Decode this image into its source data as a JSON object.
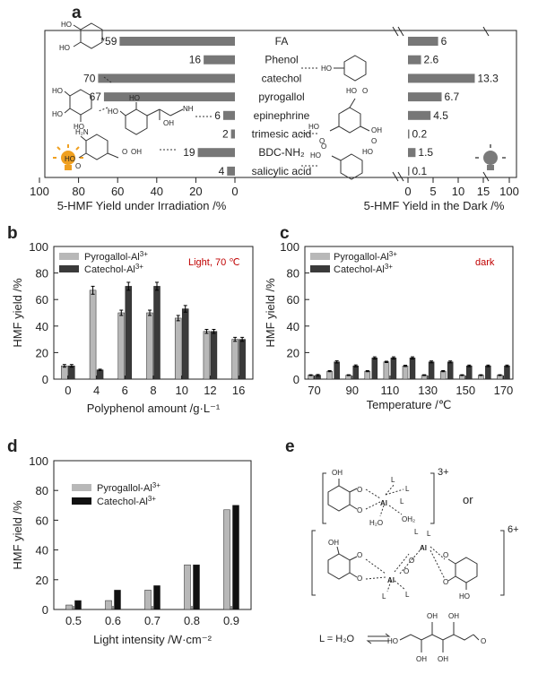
{
  "panels": {
    "a": {
      "label": "a",
      "compounds": [
        "FA",
        "Phenol",
        "catechol",
        "pyrogallol",
        "epinephrine",
        "trimesic acid",
        "BDC-NH₂",
        "salicylic acid"
      ],
      "light_labels": [
        "*59",
        "16",
        "70",
        "67",
        "6",
        "2",
        "19",
        "4"
      ],
      "dark_labels": [
        "6",
        "2.6",
        "13.3",
        "6.7",
        "4.5",
        "0.2",
        "1.5",
        "0.1"
      ],
      "left_ticks": [
        "100",
        "80",
        "60",
        "40",
        "20",
        "0"
      ],
      "right_ticks": [
        "0",
        "5",
        "10",
        "15",
        "100"
      ],
      "left_xlabel": "5-HMF Yield under Irradiation /%",
      "right_xlabel": "5-HMF Yield in the Dark /%",
      "structures": {
        "catechol": [
          "HO",
          "HO"
        ],
        "phenol": [
          "HO"
        ],
        "pyrogallol": [
          "HO",
          "HO",
          "HO"
        ],
        "epinephrine": [
          "HO",
          "HO",
          "NH",
          "OH"
        ],
        "trimesic": [
          "HO",
          "O",
          "HO",
          "O",
          "O",
          "OH"
        ],
        "bdc": [
          "H₂N",
          "HO",
          "O",
          "O",
          "OH"
        ],
        "salicylic": [
          "HO",
          "O",
          "HO"
        ]
      }
    },
    "b": {
      "label": "b",
      "annotation": "Light, 70 ℃",
      "legend_1": "Pyrogallol-Al",
      "legend_2": "Catechol-Al",
      "sup": "3+",
      "ylabel": "HMF yield /%",
      "xlabel": "Polyphenol amount /g·L⁻¹",
      "yticks": [
        "0",
        "20",
        "40",
        "60",
        "80",
        "100"
      ]
    },
    "c": {
      "label": "c",
      "annotation": "dark",
      "legend_1": "Pyrogallol-Al",
      "legend_2": "Catechol-Al",
      "sup": "3+",
      "ylabel": "HMF yield /%",
      "xlabel": "Temperature /℃",
      "yticks": [
        "0",
        "20",
        "40",
        "60",
        "80",
        "100"
      ],
      "xticks": [
        "70",
        "90",
        "110",
        "130",
        "150",
        "170"
      ]
    },
    "d": {
      "label": "d",
      "legend_1": "Pyrogallol-Al",
      "legend_2": "Catechol-Al",
      "sup": "3+",
      "ylabel": "HMF yield /%",
      "xlabel": "Light intensity /W·cm⁻²",
      "yticks": [
        "0",
        "20",
        "40",
        "60",
        "80",
        "100"
      ]
    },
    "e": {
      "label": "e",
      "or": "or",
      "charge_1": "3+",
      "charge_2": "6+",
      "complex_1": [
        "OH",
        "O",
        "O",
        "L",
        "L",
        "Al",
        "L",
        "H₂O",
        "OH₂"
      ],
      "complex_2": [
        "OH",
        "O",
        "O",
        "L",
        "L",
        "Al",
        "O",
        "O",
        "Al",
        "O",
        "O",
        "L",
        "L",
        "HO"
      ],
      "ligand_eq": "L = H₂O",
      "sugar": [
        "OH",
        "OH",
        "HO",
        "OH",
        "OH",
        "O"
      ]
    }
  },
  "chart_data": [
    {
      "type": "bar",
      "title": "",
      "categories": [
        "FA",
        "Phenol",
        "catechol",
        "pyrogallol",
        "epinephrine",
        "trimesic acid",
        "BDC-NH₂",
        "salicylic acid"
      ],
      "series": [
        {
          "name": "",
          "values": [
            59,
            16,
            70,
            67,
            6,
            2,
            19,
            4
          ]
        },
        {
          "name": "",
          "values": [
            6,
            2.6,
            13.3,
            6.7,
            4.5,
            0.2,
            1.5,
            0.1
          ]
        }
      ],
      "xlabel": "5-HMF Yield under Irradiation /%",
      "x2label": "5-HMF Yield in the Dark /%",
      "xlim": [
        100,
        0
      ],
      "x2lim": [
        0,
        100
      ],
      "orientation": "horizontal",
      "grid": false
    },
    {
      "type": "bar",
      "title": "",
      "categories": [
        "0",
        "4",
        "6",
        "8",
        "10",
        "12",
        "16"
      ],
      "series": [
        {
          "name": "Pyrogallol-Al3+",
          "values": [
            10,
            67,
            50,
            50,
            46,
            36,
            30
          ],
          "errors": [
            1,
            3,
            2,
            2,
            2,
            1.5,
            1.5
          ],
          "color": "#b8b8b8"
        },
        {
          "name": "Catechol-Al3+",
          "values": [
            10,
            7,
            70,
            70,
            53,
            36,
            30
          ],
          "errors": [
            1,
            0.5,
            3,
            3,
            2.5,
            1.5,
            1.5
          ],
          "color": "#3a3a3a"
        }
      ],
      "xlabel": "Polyphenol amount /g·L⁻¹",
      "ylabel": "HMF yield /%",
      "ylim": [
        0,
        100
      ],
      "legend": "top-left",
      "grid": false
    },
    {
      "type": "bar",
      "title": "",
      "categories": [
        "70",
        "80",
        "90",
        "100",
        "110",
        "120",
        "130",
        "140",
        "150",
        "160",
        "170"
      ],
      "series": [
        {
          "name": "Pyrogallol-Al3+",
          "values": [
            3,
            6,
            3,
            6,
            13,
            10,
            3,
            6,
            3,
            3,
            3
          ],
          "errors": [
            0.3,
            0.4,
            0.3,
            0.4,
            0.5,
            0.5,
            0.3,
            0.4,
            0.3,
            0.3,
            0.3
          ],
          "color": "#b8b8b8"
        },
        {
          "name": "Catechol-Al3+",
          "values": [
            3,
            13,
            10,
            16,
            16,
            16,
            13,
            13,
            10,
            10,
            10
          ],
          "errors": [
            0.5,
            0.8,
            0.7,
            0.8,
            0.8,
            0.8,
            0.7,
            0.7,
            0.6,
            0.6,
            0.6
          ],
          "color": "#3a3a3a"
        }
      ],
      "xlabel": "Temperature /℃",
      "ylabel": "HMF yield /%",
      "ylim": [
        0,
        100
      ],
      "legend": "top-left",
      "grid": false
    },
    {
      "type": "bar",
      "title": "",
      "categories": [
        "0.5",
        "0.6",
        "0.7",
        "0.8",
        "0.9"
      ],
      "series": [
        {
          "name": "Pyrogallol-Al3+",
          "values": [
            3,
            6,
            13,
            30,
            67
          ],
          "color": "#b8b8b8"
        },
        {
          "name": "Catechol-Al3+",
          "values": [
            6,
            13,
            16,
            30,
            70
          ],
          "color": "#111111"
        }
      ],
      "xlabel": "Light intensity /W·cm⁻²",
      "ylabel": "HMF yield /%",
      "ylim": [
        0,
        100
      ],
      "legend": "top-left",
      "grid": false
    }
  ]
}
